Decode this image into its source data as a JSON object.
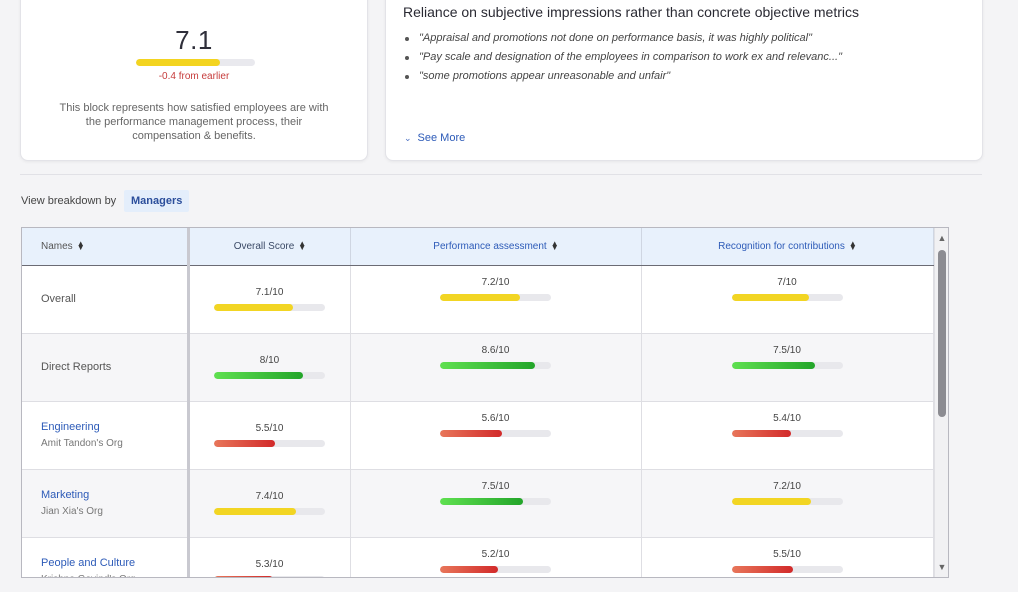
{
  "score_card": {
    "score": "7.1",
    "score_fraction": 0.71,
    "delta": "-0.4 from earlier",
    "description": "This block represents how satisfied employees are with the performance management process, their compensation & benefits.",
    "colors": {
      "bar": "#f3d420",
      "delta": "#c63b3b"
    }
  },
  "insight_card": {
    "title": "Reliance on subjective impressions rather than concrete objective metrics",
    "quotes": [
      "\"Appraisal and promotions not done on performance basis, it was highly political\"",
      "\"Pay scale and designation of the employees in comparison to work ex and relevanc...\"",
      "\"some promotions appear unreasonable and unfair\""
    ],
    "see_more": "See More"
  },
  "breakdown": {
    "label": "View breakdown by",
    "selected": "Managers"
  },
  "table": {
    "headers": {
      "names": "Names",
      "overall": "Overall Score",
      "performance": "Performance assessment",
      "recognition": "Recognition for contributions"
    },
    "rows": [
      {
        "name": "Overall",
        "sub": "",
        "link": false,
        "overall": {
          "label": "7.1/10",
          "value": 0.71,
          "color": "yellow"
        },
        "performance": {
          "label": "7.2/10",
          "value": 0.72,
          "color": "yellow"
        },
        "recognition": {
          "label": "7/10",
          "value": 0.7,
          "color": "yellow"
        }
      },
      {
        "name": "Direct Reports",
        "sub": "",
        "link": false,
        "overall": {
          "label": "8/10",
          "value": 0.8,
          "color": "green"
        },
        "performance": {
          "label": "8.6/10",
          "value": 0.86,
          "color": "green"
        },
        "recognition": {
          "label": "7.5/10",
          "value": 0.75,
          "color": "green"
        }
      },
      {
        "name": "Engineering",
        "sub": "Amit Tandon's Org",
        "link": true,
        "overall": {
          "label": "5.5/10",
          "value": 0.55,
          "color": "red"
        },
        "performance": {
          "label": "5.6/10",
          "value": 0.56,
          "color": "red"
        },
        "recognition": {
          "label": "5.4/10",
          "value": 0.54,
          "color": "red"
        }
      },
      {
        "name": "Marketing",
        "sub": "Jian Xia's Org",
        "link": true,
        "overall": {
          "label": "7.4/10",
          "value": 0.74,
          "color": "yellow"
        },
        "performance": {
          "label": "7.5/10",
          "value": 0.75,
          "color": "green"
        },
        "recognition": {
          "label": "7.2/10",
          "value": 0.72,
          "color": "yellow"
        }
      },
      {
        "name": "People and Culture",
        "sub": "Krishna Govind's Org",
        "link": true,
        "overall": {
          "label": "5.3/10",
          "value": 0.53,
          "color": "red"
        },
        "performance": {
          "label": "5.2/10",
          "value": 0.52,
          "color": "red"
        },
        "recognition": {
          "label": "5.5/10",
          "value": 0.55,
          "color": "red"
        }
      }
    ]
  },
  "scrollbar": {
    "up_icon": "triangle-up-icon",
    "down_icon": "triangle-down-icon",
    "position_fraction": 0.0
  }
}
